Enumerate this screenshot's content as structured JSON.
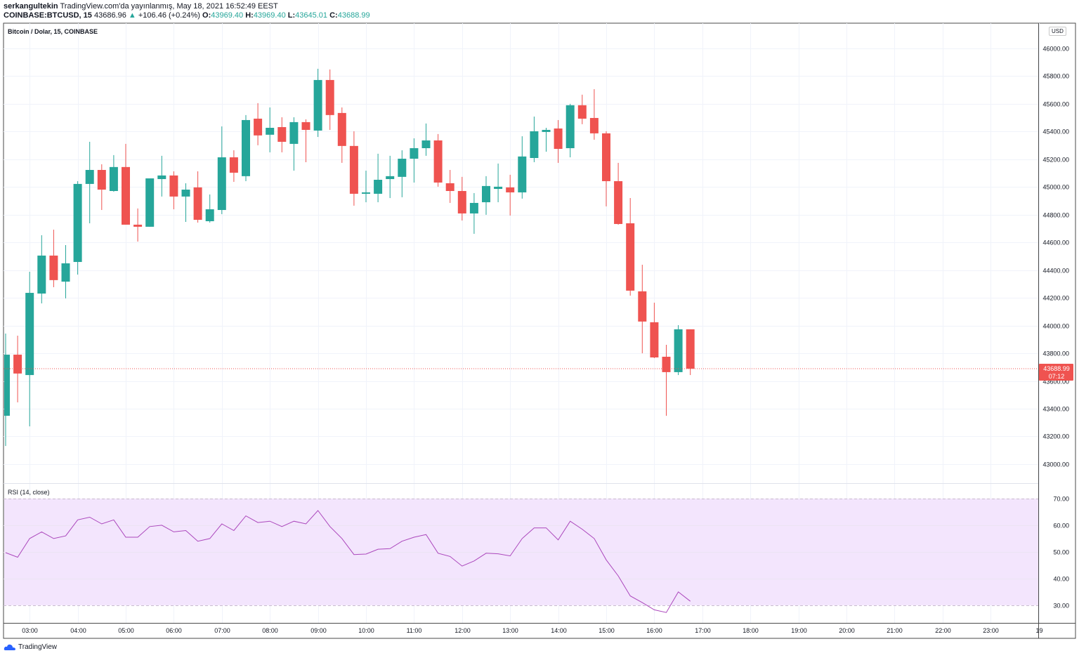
{
  "header": {
    "author": "serkangultekin",
    "published": "TradingView.com'da yayınlanmış, May 18, 2021 16:52:49 EEST",
    "symbol": "COINBASE:BTCUSD, 15",
    "last": "43686.96",
    "change": "+106.46 (+0.24%)",
    "o_label": "O:",
    "o": "43969.40",
    "h_label": "H:",
    "h": "43969.40",
    "l_label": "L:",
    "l": "43645.01",
    "c_label": "C:",
    "c": "43688.99"
  },
  "pane_title": "Bitcoin / Dolar, 15, COINBASE",
  "currency": "USD",
  "rsi_title": "RSI (14, close)",
  "last_price_tag": {
    "price": "43688.99",
    "countdown": "07:12"
  },
  "footer": {
    "brand": "TradingView"
  },
  "colors": {
    "up": "#26a69a",
    "down": "#ef5350",
    "rsi": "#ab47bc",
    "rsi_band": "#f3e5fd"
  },
  "chart_data": [
    {
      "type": "candlestick",
      "title": "Bitcoin / Dolar, 15, COINBASE",
      "ylim": [
        42863,
        46182
      ],
      "y_ticks": [
        "43000.00",
        "43200.00",
        "43400.00",
        "43600.00",
        "43800.00",
        "44000.00",
        "44200.00",
        "44400.00",
        "44600.00",
        "44800.00",
        "45000.00",
        "45200.00",
        "45400.00",
        "45600.00",
        "45800.00",
        "46000.00"
      ],
      "x_ticks": [
        "03:00",
        "04:00",
        "05:00",
        "06:00",
        "07:00",
        "08:00",
        "09:00",
        "10:00",
        "11:00",
        "12:00",
        "13:00",
        "14:00",
        "15:00",
        "16:00",
        "17:00",
        "18:00",
        "19:00",
        "20:00",
        "21:00",
        "22:00",
        "23:00",
        "19"
      ],
      "first_bar_time": "02:30",
      "interval_minutes": 15,
      "last_price": 43688.99,
      "ohlc": [
        [
          43349,
          43942,
          43131,
          43790
        ],
        [
          43790,
          43927,
          43446,
          43654
        ],
        [
          43643,
          44388,
          43273,
          44236
        ],
        [
          44231,
          44652,
          44160,
          44505
        ],
        [
          44505,
          44692,
          44277,
          44328
        ],
        [
          44317,
          44581,
          44196,
          44449
        ],
        [
          44459,
          45042,
          44368,
          45022
        ],
        [
          45022,
          45326,
          44738,
          45123
        ],
        [
          45123,
          45164,
          44834,
          44981
        ],
        [
          44971,
          45230,
          44966,
          45144
        ],
        [
          45144,
          45311,
          44728,
          44728
        ],
        [
          44728,
          44845,
          44606,
          44713
        ],
        [
          44713,
          45062,
          44713,
          45062
        ],
        [
          45057,
          45225,
          44931,
          45083
        ],
        [
          45083,
          45113,
          44839,
          44931
        ],
        [
          44931,
          45027,
          44748,
          44981
        ],
        [
          44997,
          45113,
          44743,
          44763
        ],
        [
          44753,
          44946,
          44743,
          44839
        ],
        [
          44834,
          45437,
          44804,
          45214
        ],
        [
          45214,
          45265,
          45037,
          45103
        ],
        [
          45078,
          45519,
          45042,
          45483
        ],
        [
          45493,
          45605,
          45301,
          45372
        ],
        [
          45377,
          45574,
          45250,
          45427
        ],
        [
          45432,
          45503,
          45250,
          45326
        ],
        [
          45311,
          45503,
          45118,
          45468
        ],
        [
          45468,
          45488,
          45179,
          45412
        ],
        [
          45407,
          45853,
          45361,
          45772
        ],
        [
          45772,
          45848,
          45412,
          45519
        ],
        [
          45534,
          45574,
          45174,
          45296
        ],
        [
          45296,
          45402,
          44865,
          44951
        ],
        [
          44951,
          45118,
          44890,
          44961
        ],
        [
          44951,
          45240,
          44890,
          45052
        ],
        [
          45057,
          45225,
          44920,
          45078
        ],
        [
          45073,
          45265,
          44926,
          45204
        ],
        [
          45204,
          45351,
          45032,
          45280
        ],
        [
          45280,
          45458,
          45225,
          45336
        ],
        [
          45336,
          45382,
          45002,
          45032
        ],
        [
          45027,
          45123,
          44885,
          44971
        ],
        [
          44971,
          45073,
          44758,
          44809
        ],
        [
          44809,
          44956,
          44662,
          44885
        ],
        [
          44890,
          45078,
          44799,
          45007
        ],
        [
          44986,
          45169,
          44890,
          45002
        ],
        [
          44997,
          45088,
          44794,
          44961
        ],
        [
          44961,
          45366,
          44916,
          45220
        ],
        [
          45209,
          45508,
          45179,
          45402
        ],
        [
          45397,
          45427,
          45255,
          45412
        ],
        [
          45422,
          45483,
          45174,
          45275
        ],
        [
          45280,
          45600,
          45214,
          45590
        ],
        [
          45590,
          45666,
          45453,
          45493
        ],
        [
          45498,
          45706,
          45341,
          45387
        ],
        [
          45387,
          45402,
          44860,
          45042
        ],
        [
          45042,
          45174,
          44728,
          44733
        ],
        [
          44738,
          44920,
          44216,
          44252
        ],
        [
          44247,
          44439,
          43800,
          44029
        ],
        [
          44024,
          44165,
          43765,
          43770
        ],
        [
          43775,
          43861,
          43349,
          43664
        ],
        [
          43664,
          44003,
          43643,
          43973
        ],
        [
          43973,
          43973,
          43643,
          43689
        ]
      ]
    },
    {
      "type": "line",
      "title": "RSI (14, close)",
      "ylim": [
        23.4,
        75.5
      ],
      "y_ticks": [
        "30.00",
        "40.00",
        "50.00",
        "60.00",
        "70.00"
      ],
      "band": [
        30,
        70
      ],
      "values": [
        49.7,
        48,
        55,
        57.5,
        55,
        56,
        62,
        63,
        60.5,
        62,
        55.5,
        55.5,
        59.5,
        60,
        57.5,
        58,
        54,
        55,
        60.5,
        58,
        63.5,
        61,
        61.5,
        59.5,
        61.5,
        60.5,
        65.5,
        59.5,
        55,
        49,
        49.2,
        51,
        51.2,
        54,
        55.5,
        56.5,
        49.5,
        48.3,
        44.7,
        46.6,
        49.5,
        49.3,
        48.5,
        55,
        59,
        59,
        54.5,
        61.5,
        58.5,
        55,
        47,
        41,
        33.5,
        31,
        28.3,
        27.3,
        35,
        31.5
      ]
    }
  ]
}
